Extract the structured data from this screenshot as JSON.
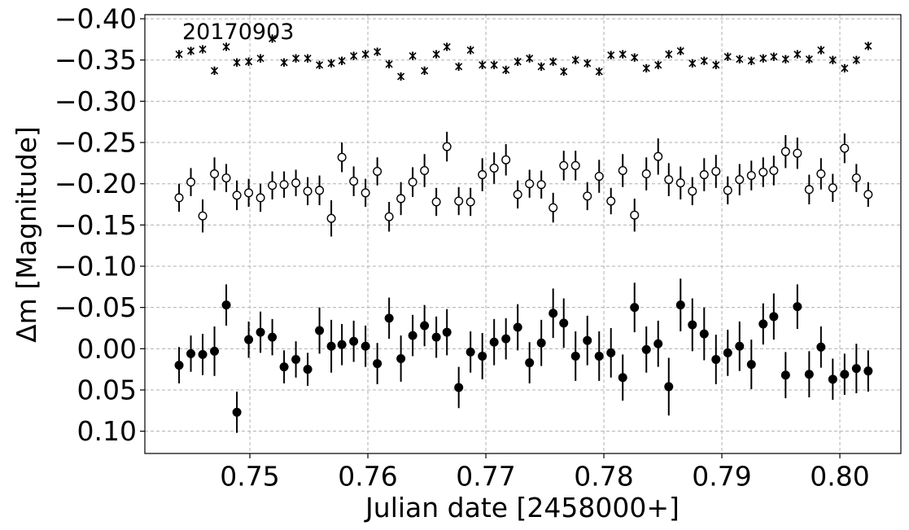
{
  "chart_data": {
    "type": "errorbar",
    "annotation": "20170903",
    "x_label": "Julian date [2458000+]",
    "y_label": "Δm [Magnitude]",
    "xlim": [
      0.7411,
      0.80517
    ],
    "ylim": [
      -0.405,
      0.127
    ],
    "y_inverted": true,
    "grid": true,
    "xticks": [
      0.75,
      0.76,
      0.77,
      0.78,
      0.79,
      {
        "value": 0.8,
        "label": "0.80"
      }
    ],
    "yticks": [
      {
        "value": -0.4,
        "label": "−0.40"
      },
      {
        "value": -0.35,
        "label": "−0.35"
      },
      {
        "value": -0.3,
        "label": "−0.30"
      },
      {
        "value": -0.25,
        "label": "−0.25"
      },
      {
        "value": -0.2,
        "label": "−0.20"
      },
      {
        "value": -0.15,
        "label": "−0.15"
      },
      {
        "value": -0.1,
        "label": "−0.10"
      },
      {
        "value": -0.05,
        "label": "−0.05"
      },
      {
        "value": 0,
        "label": "0.00"
      },
      0.05,
      {
        "value": 0.1,
        "label": "0.10"
      }
    ],
    "x": [
      0.744,
      0.745,
      0.746,
      0.747,
      0.748,
      0.7489,
      0.7499,
      0.7509,
      0.7519,
      0.7529,
      0.7539,
      0.7549,
      0.7559,
      0.7569,
      0.7578,
      0.7588,
      0.7598,
      0.7608,
      0.7618,
      0.7628,
      0.7638,
      0.7648,
      0.7658,
      0.7667,
      0.7677,
      0.7687,
      0.7697,
      0.7707,
      0.7717,
      0.7727,
      0.7737,
      0.7747,
      0.7757,
      0.7766,
      0.7776,
      0.7786,
      0.7796,
      0.7806,
      0.7816,
      0.7826,
      0.7836,
      0.7846,
      0.7855,
      0.7865,
      0.7875,
      0.7885,
      0.7895,
      0.7905,
      0.7915,
      0.7925,
      0.7935,
      0.7944,
      0.7954,
      0.7964,
      0.7974,
      0.7984,
      0.7994,
      0.8004,
      0.8014,
      0.8024
    ],
    "series": [
      {
        "marker": "star",
        "color": "#000000",
        "values": [
          -0.357,
          -0.361,
          -0.363,
          -0.337,
          -0.366,
          -0.347,
          -0.348,
          -0.352,
          -0.376,
          -0.347,
          -0.352,
          -0.352,
          -0.344,
          -0.346,
          -0.349,
          -0.355,
          -0.357,
          -0.36,
          -0.345,
          -0.33,
          -0.355,
          -0.337,
          -0.357,
          -0.366,
          -0.342,
          -0.362,
          -0.344,
          -0.344,
          -0.338,
          -0.348,
          -0.352,
          -0.342,
          -0.348,
          -0.336,
          -0.35,
          -0.346,
          -0.336,
          -0.356,
          -0.357,
          -0.353,
          -0.34,
          -0.344,
          -0.357,
          -0.361,
          -0.346,
          -0.349,
          -0.344,
          -0.354,
          -0.351,
          -0.349,
          -0.352,
          -0.354,
          -0.351,
          -0.357,
          -0.351,
          -0.362,
          -0.35,
          -0.34,
          -0.35,
          -0.367
        ],
        "errors": [
          0.005,
          0.005,
          0.005,
          0.005,
          0.005,
          0.005,
          0.005,
          0.005,
          0.005,
          0.005,
          0.005,
          0.005,
          0.005,
          0.005,
          0.005,
          0.005,
          0.005,
          0.005,
          0.005,
          0.005,
          0.005,
          0.005,
          0.005,
          0.005,
          0.005,
          0.005,
          0.005,
          0.005,
          0.005,
          0.005,
          0.005,
          0.005,
          0.005,
          0.005,
          0.005,
          0.005,
          0.005,
          0.005,
          0.005,
          0.005,
          0.005,
          0.005,
          0.005,
          0.005,
          0.005,
          0.005,
          0.005,
          0.005,
          0.005,
          0.005,
          0.005,
          0.005,
          0.005,
          0.005,
          0.005,
          0.005,
          0.005,
          0.005,
          0.005,
          0.005
        ]
      },
      {
        "marker": "open",
        "color": "#000000",
        "values": [
          -0.183,
          -0.202,
          -0.161,
          -0.212,
          -0.207,
          -0.186,
          -0.189,
          -0.183,
          -0.198,
          -0.199,
          -0.201,
          -0.191,
          -0.192,
          -0.158,
          -0.232,
          -0.203,
          -0.189,
          -0.215,
          -0.16,
          -0.182,
          -0.202,
          -0.216,
          -0.178,
          -0.245,
          -0.179,
          -0.178,
          -0.211,
          -0.219,
          -0.229,
          -0.187,
          -0.2,
          -0.199,
          -0.171,
          -0.222,
          -0.222,
          -0.185,
          -0.209,
          -0.179,
          -0.216,
          -0.162,
          -0.212,
          -0.233,
          -0.205,
          -0.201,
          -0.191,
          -0.211,
          -0.215,
          -0.192,
          -0.205,
          -0.21,
          -0.214,
          -0.216,
          -0.239,
          -0.237,
          -0.193,
          -0.212,
          -0.195,
          -0.243,
          -0.207,
          -0.187
        ],
        "errors": [
          0.017,
          0.017,
          0.02,
          0.02,
          0.017,
          0.018,
          0.017,
          0.017,
          0.017,
          0.016,
          0.016,
          0.017,
          0.018,
          0.022,
          0.018,
          0.018,
          0.017,
          0.017,
          0.018,
          0.02,
          0.018,
          0.02,
          0.017,
          0.018,
          0.017,
          0.017,
          0.02,
          0.019,
          0.019,
          0.017,
          0.017,
          0.017,
          0.018,
          0.018,
          0.018,
          0.017,
          0.02,
          0.016,
          0.02,
          0.02,
          0.02,
          0.022,
          0.02,
          0.02,
          0.017,
          0.02,
          0.02,
          0.017,
          0.019,
          0.018,
          0.018,
          0.018,
          0.02,
          0.019,
          0.018,
          0.019,
          0.017,
          0.018,
          0.017,
          0.015
        ]
      },
      {
        "marker": "filled",
        "color": "#000000",
        "values": [
          0.02,
          0.006,
          0.007,
          0.003,
          -0.053,
          0.077,
          -0.011,
          -0.02,
          -0.014,
          0.022,
          0.013,
          0.025,
          -0.022,
          -0.003,
          -0.005,
          -0.009,
          -0.003,
          0.018,
          -0.037,
          0.012,
          -0.016,
          -0.028,
          -0.014,
          -0.02,
          0.047,
          0.004,
          0.009,
          -0.008,
          -0.012,
          -0.026,
          0.017,
          -0.007,
          -0.043,
          -0.031,
          0.009,
          -0.01,
          0.009,
          0.005,
          0.035,
          -0.05,
          0.001,
          -0.006,
          0.046,
          -0.053,
          -0.029,
          -0.018,
          0.013,
          0.005,
          -0.003,
          0.019,
          -0.03,
          -0.039,
          0.032,
          -0.051,
          0.031,
          -0.002,
          0.037,
          0.031,
          0.024,
          0.027
        ],
        "errors": [
          0.022,
          0.022,
          0.025,
          0.03,
          0.025,
          0.025,
          0.022,
          0.025,
          0.022,
          0.02,
          0.022,
          0.02,
          0.028,
          0.032,
          0.025,
          0.025,
          0.025,
          0.025,
          0.025,
          0.028,
          0.025,
          0.025,
          0.025,
          0.028,
          0.025,
          0.025,
          0.028,
          0.028,
          0.025,
          0.028,
          0.025,
          0.028,
          0.03,
          0.03,
          0.03,
          0.03,
          0.03,
          0.03,
          0.028,
          0.03,
          0.028,
          0.028,
          0.035,
          0.032,
          0.032,
          0.032,
          0.03,
          0.028,
          0.03,
          0.03,
          0.025,
          0.028,
          0.028,
          0.027,
          0.028,
          0.025,
          0.025,
          0.025,
          0.03,
          0.025
        ]
      }
    ]
  }
}
